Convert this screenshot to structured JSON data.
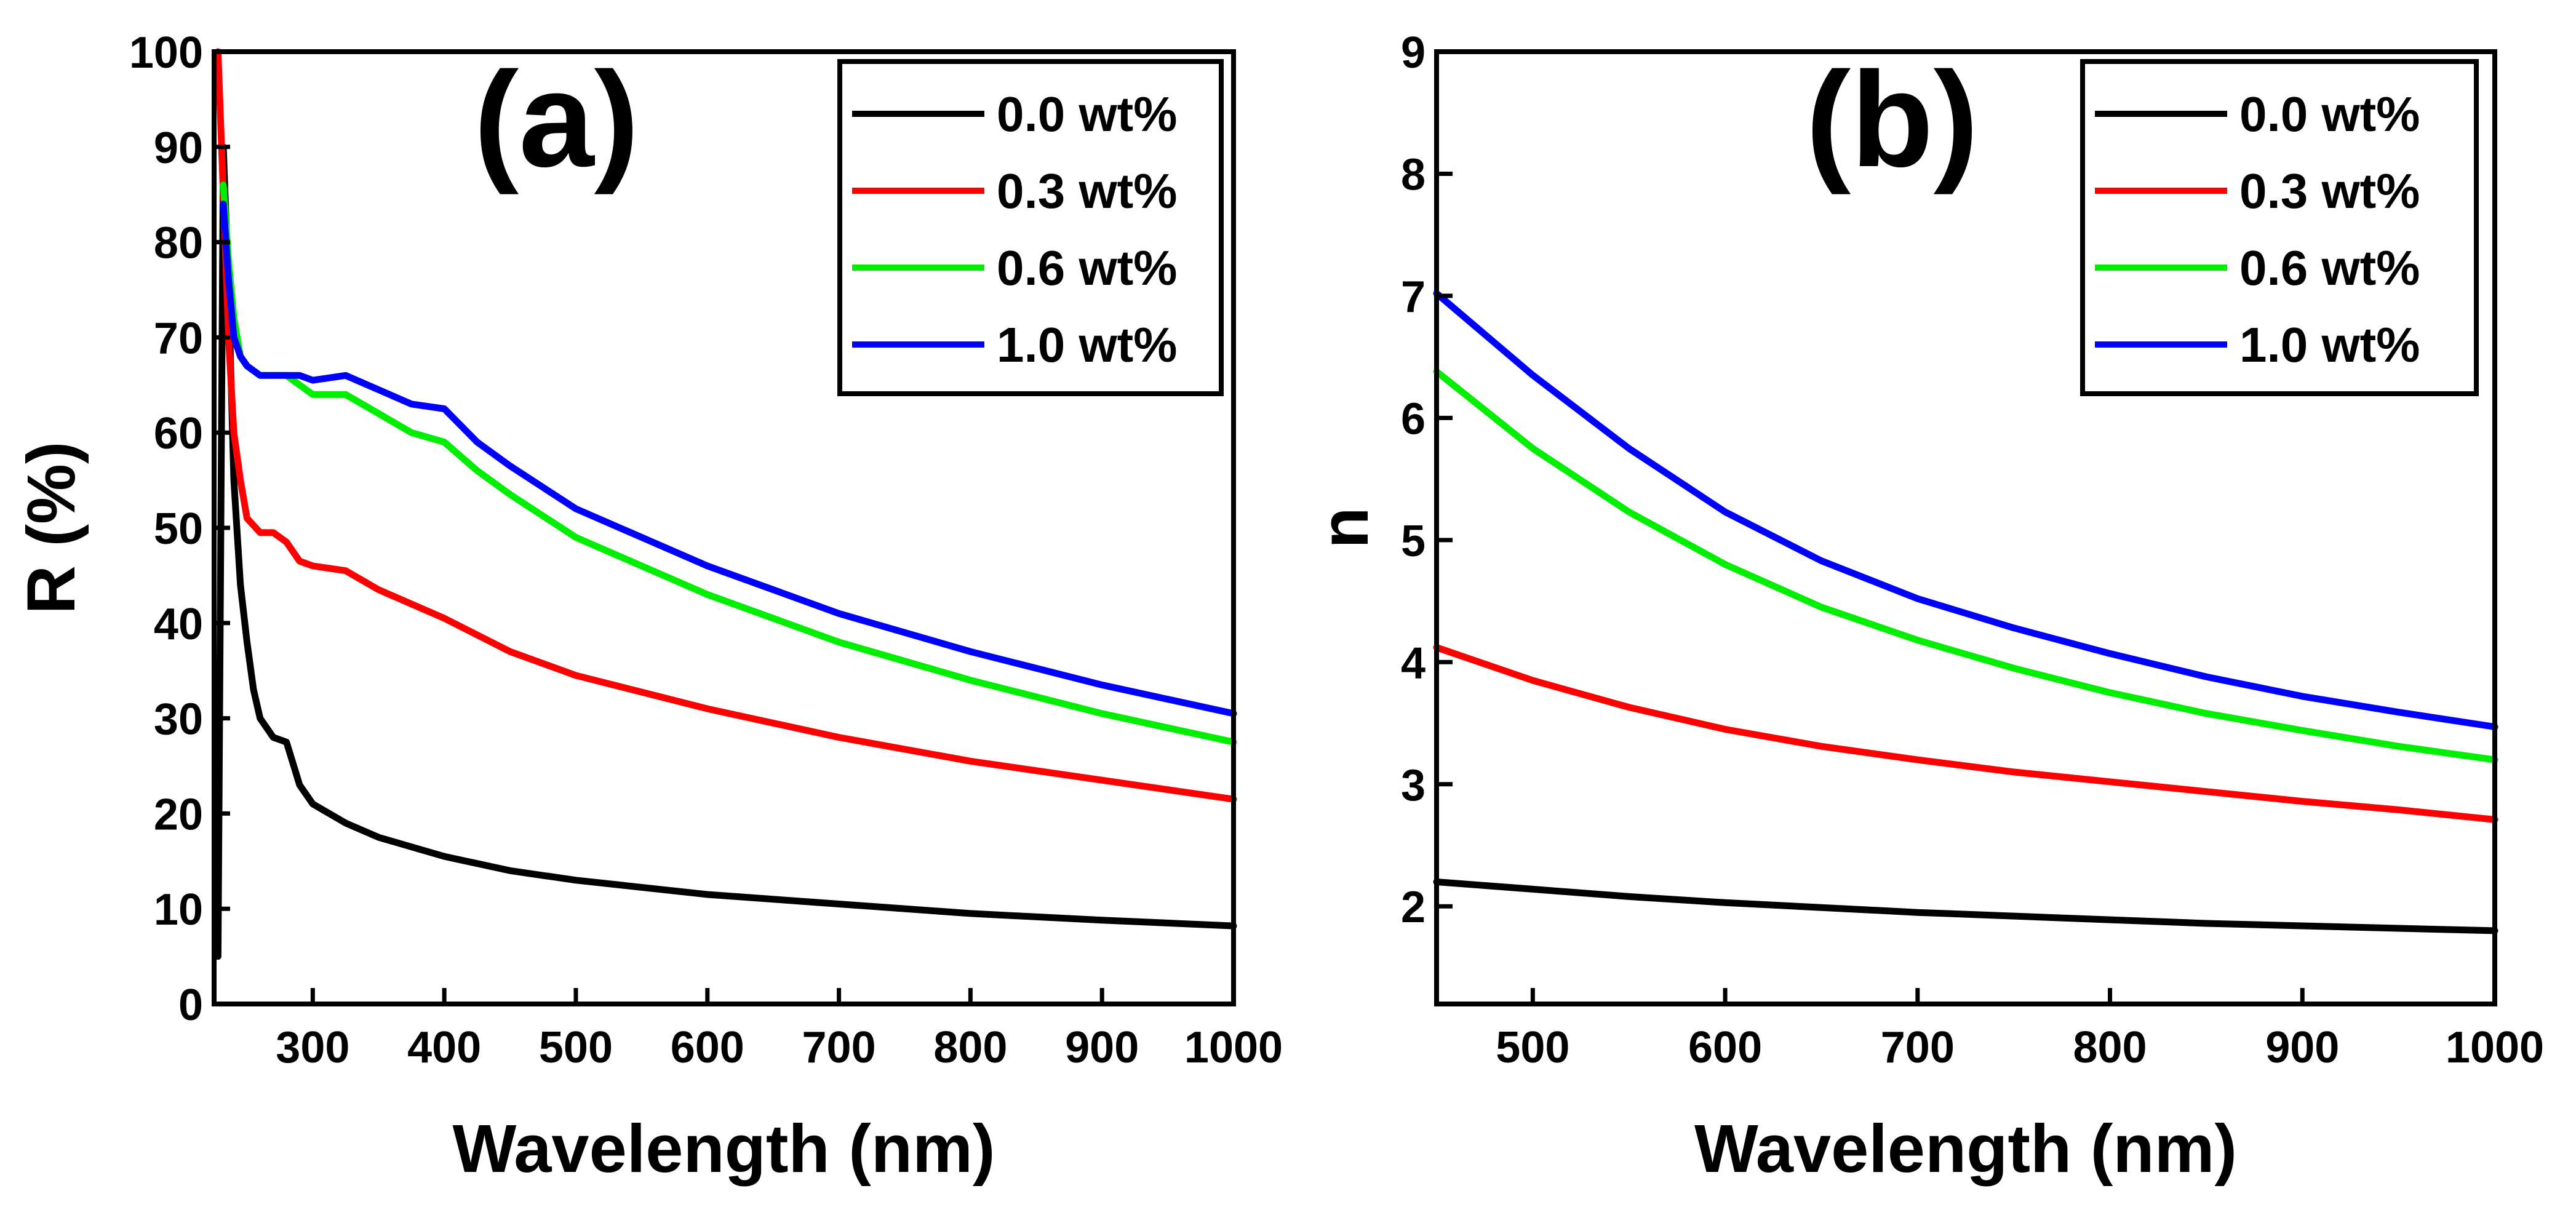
{
  "chart_data": [
    {
      "type": "line",
      "panel_label": "(a)",
      "xlabel": "Wavelength (nm)",
      "ylabel": "R (%)",
      "xlim": [
        225,
        1000
      ],
      "ylim": [
        0,
        100
      ],
      "x_ticks": [
        300,
        400,
        500,
        600,
        700,
        800,
        900,
        1000
      ],
      "x_tick_labels": [
        "300",
        "400",
        "500",
        "600",
        "700",
        "800",
        "900",
        "1000"
      ],
      "y_ticks": [
        0,
        10,
        20,
        30,
        40,
        50,
        60,
        70,
        80,
        90,
        100
      ],
      "y_tick_labels": [
        "0",
        "10",
        "20",
        "30",
        "40",
        "50",
        "60",
        "70",
        "80",
        "90",
        "100"
      ],
      "legend_position": "top-right",
      "series": [
        {
          "name": "0.0 wt%",
          "color": "#000000",
          "x": [
            228,
            232,
            236,
            240,
            245,
            250,
            255,
            260,
            265,
            270,
            280,
            290,
            300,
            325,
            350,
            375,
            400,
            450,
            500,
            600,
            700,
            800,
            900,
            1000
          ],
          "y": [
            5,
            90,
            75,
            55,
            44,
            38,
            33,
            30,
            29,
            28,
            27.5,
            23,
            21,
            19,
            17.5,
            16.5,
            15.5,
            14,
            13,
            11.5,
            10.5,
            9.5,
            8.8,
            8.2
          ]
        },
        {
          "name": "0.3 wt%",
          "color": "#ff0000",
          "x": [
            228,
            232,
            236,
            240,
            245,
            250,
            260,
            270,
            280,
            290,
            300,
            325,
            350,
            375,
            400,
            450,
            500,
            600,
            700,
            800,
            900,
            1000
          ],
          "y": [
            100,
            85,
            70,
            60,
            55,
            51,
            49.5,
            49.5,
            48.5,
            46.5,
            46,
            45.5,
            43.5,
            42,
            40.5,
            37,
            34.5,
            31,
            28,
            25.5,
            23.5,
            21.5
          ]
        },
        {
          "name": "0.6 wt%",
          "color": "#00ee00",
          "x": [
            232,
            236,
            240,
            245,
            250,
            260,
            270,
            280,
            290,
            300,
            325,
            350,
            375,
            400,
            425,
            450,
            500,
            600,
            700,
            800,
            900,
            1000
          ],
          "y": [
            86,
            78,
            72,
            68,
            67,
            66,
            66,
            66,
            65,
            64,
            64,
            62,
            60,
            59,
            56,
            53.5,
            49,
            43,
            38,
            34,
            30.5,
            27.5
          ]
        },
        {
          "name": "1.0 wt%",
          "color": "#0000ff",
          "x": [
            232,
            236,
            240,
            245,
            250,
            260,
            270,
            280,
            290,
            300,
            325,
            350,
            375,
            400,
            425,
            450,
            500,
            600,
            700,
            800,
            900,
            1000
          ],
          "y": [
            84,
            76,
            70,
            68,
            67,
            66,
            66,
            66,
            66,
            65.5,
            66,
            64.5,
            63,
            62.5,
            59,
            56.5,
            52,
            46,
            41,
            37,
            33.5,
            30.5
          ]
        }
      ],
      "legend": {
        "entries": [
          "0.0 wt%",
          "0.3 wt%",
          "0.6 wt%",
          "1.0 wt%"
        ]
      }
    },
    {
      "type": "line",
      "panel_label": "(b)",
      "xlabel": "Wavelength (nm)",
      "ylabel": "n",
      "xlim": [
        450,
        1000
      ],
      "ylim": [
        1.2,
        9
      ],
      "x_ticks": [
        500,
        600,
        700,
        800,
        900,
        1000
      ],
      "x_tick_labels": [
        "500",
        "600",
        "700",
        "800",
        "900",
        "1000"
      ],
      "y_ticks": [
        2,
        3,
        4,
        5,
        6,
        7,
        8,
        9
      ],
      "y_tick_labels": [
        "2",
        "3",
        "4",
        "5",
        "6",
        "7",
        "8",
        "9"
      ],
      "legend_position": "top-right",
      "series": [
        {
          "name": "0.0 wt%",
          "color": "#000000",
          "x": [
            450,
            500,
            550,
            600,
            650,
            700,
            750,
            800,
            850,
            900,
            950,
            1000
          ],
          "y": [
            2.2,
            2.14,
            2.08,
            2.03,
            1.99,
            1.95,
            1.92,
            1.89,
            1.86,
            1.84,
            1.82,
            1.8
          ]
        },
        {
          "name": "0.3 wt%",
          "color": "#ff0000",
          "x": [
            450,
            500,
            550,
            600,
            650,
            700,
            750,
            800,
            850,
            900,
            950,
            1000
          ],
          "y": [
            4.12,
            3.85,
            3.63,
            3.45,
            3.31,
            3.2,
            3.1,
            3.02,
            2.94,
            2.86,
            2.79,
            2.71
          ]
        },
        {
          "name": "0.6 wt%",
          "color": "#00ee00",
          "x": [
            450,
            500,
            550,
            600,
            650,
            700,
            750,
            800,
            850,
            900,
            950,
            1000
          ],
          "y": [
            6.38,
            5.75,
            5.23,
            4.8,
            4.45,
            4.18,
            3.95,
            3.75,
            3.58,
            3.44,
            3.31,
            3.2
          ]
        },
        {
          "name": "1.0 wt%",
          "color": "#0000ff",
          "x": [
            450,
            500,
            550,
            600,
            650,
            700,
            750,
            800,
            850,
            900,
            950,
            1000
          ],
          "y": [
            7.02,
            6.35,
            5.75,
            5.23,
            4.83,
            4.52,
            4.28,
            4.07,
            3.88,
            3.72,
            3.59,
            3.47
          ]
        }
      ],
      "legend": {
        "entries": [
          "0.0 wt%",
          "0.3 wt%",
          "0.6 wt%",
          "1.0 wt%"
        ]
      }
    }
  ]
}
